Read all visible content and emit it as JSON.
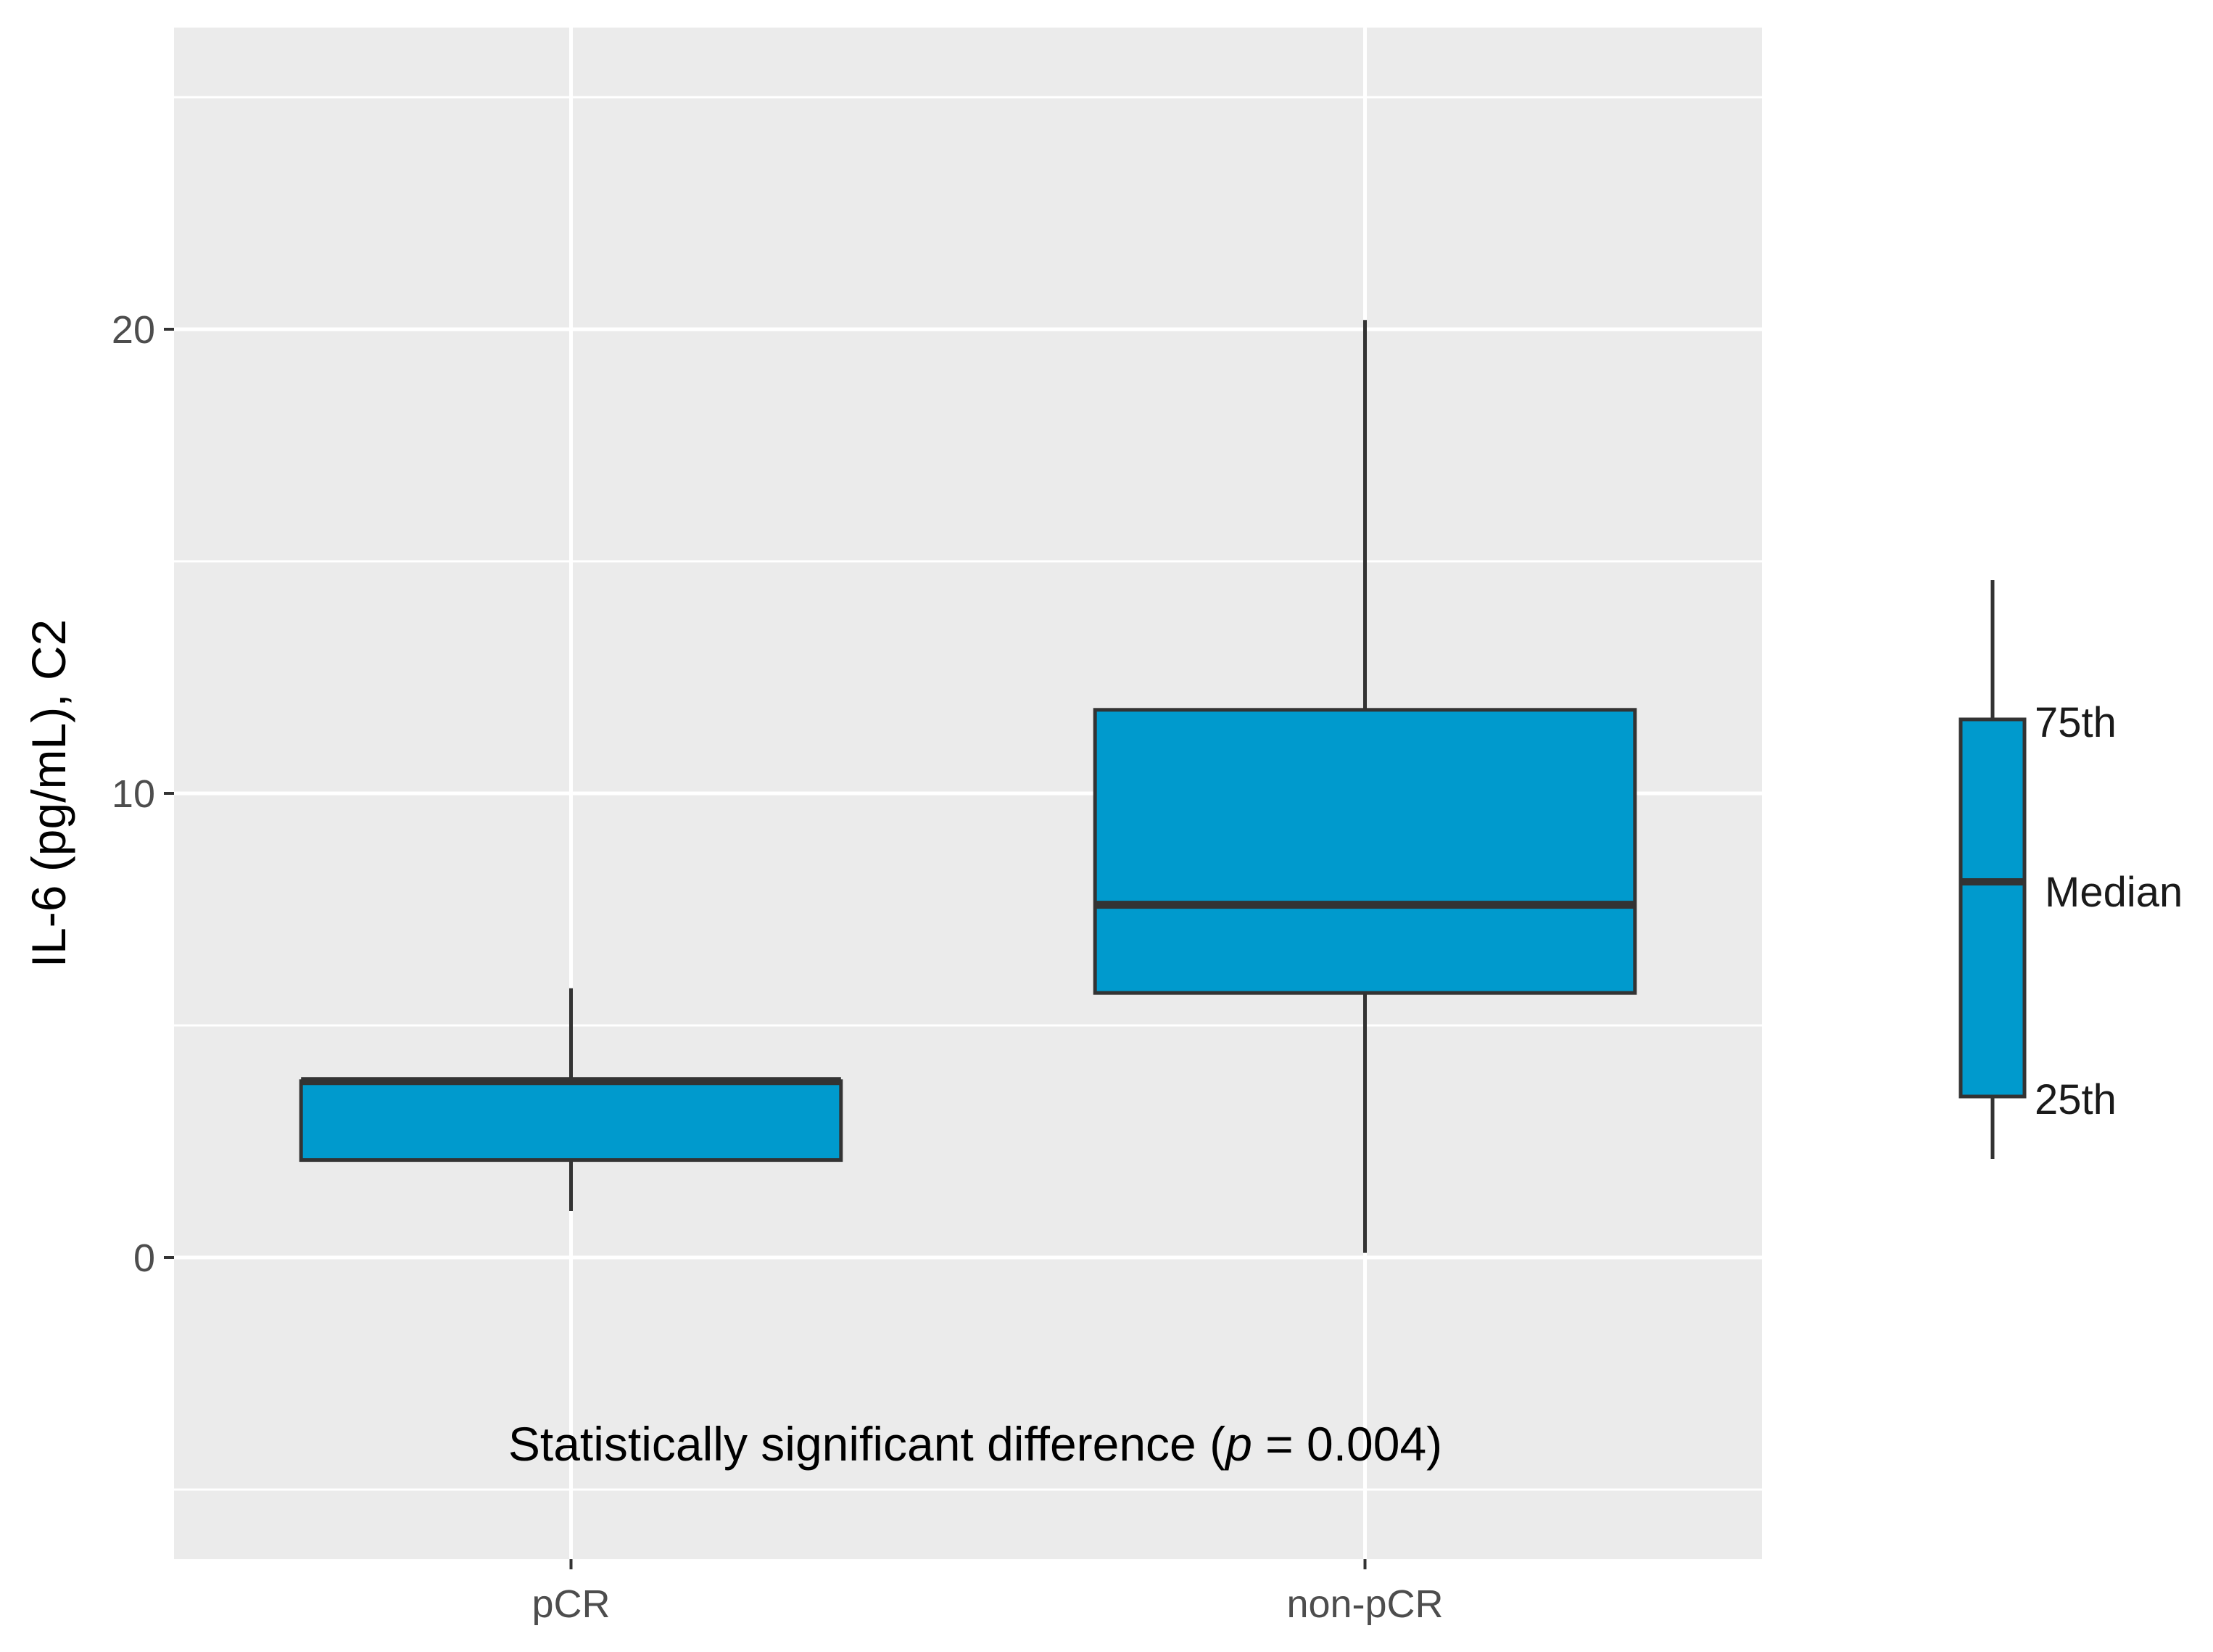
{
  "chart_data": {
    "type": "box",
    "ylabel": "IL-6 (pg/mL), C2",
    "xlabel": "",
    "ylim": [
      -6.5,
      26.5
    ],
    "yticks": [
      0,
      10,
      20
    ],
    "grid": true,
    "categories": [
      "pCR",
      "non-pCR"
    ],
    "boxes": [
      {
        "category": "pCR",
        "whisker_low": 1.0,
        "q1": 2.1,
        "median": 3.8,
        "q3": 3.8,
        "whisker_high": 5.8
      },
      {
        "category": "non-pCR",
        "whisker_low": 0.1,
        "q1": 5.7,
        "median": 7.6,
        "q3": 11.8,
        "whisker_high": 20.2
      }
    ],
    "annotation": {
      "prefix": "Statistically significant difference (",
      "p_symbol": "p",
      "suffix": " = 0.004)"
    },
    "legend": {
      "placement": "right",
      "labels": {
        "q3": "75th",
        "median": "Median",
        "q1": "25th"
      }
    },
    "colors": {
      "box_fill": "#009ACD",
      "box_stroke": "#333333",
      "panel_bg": "#EBEBEB",
      "grid": "#FFFFFF"
    }
  }
}
